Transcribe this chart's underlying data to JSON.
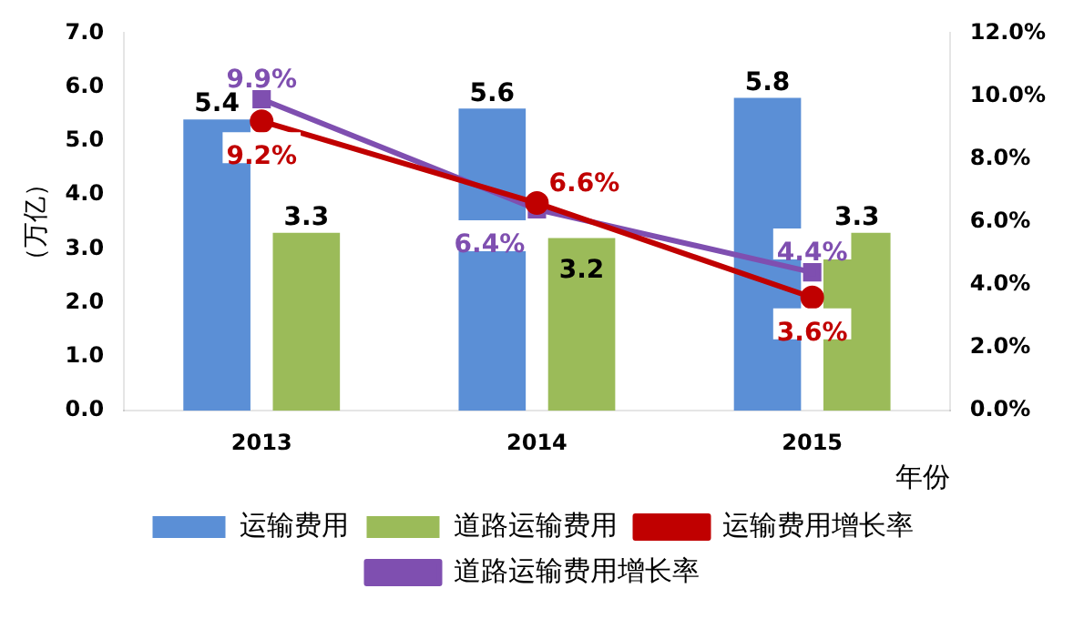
{
  "chart_data": {
    "type": "bar",
    "categories": [
      "2013",
      "2014",
      "2015"
    ],
    "xlabel": "年份",
    "ylabel": "（万亿）",
    "ylim": [
      0,
      7
    ],
    "yticks": [
      {
        "value": 0,
        "label": "0.0"
      },
      {
        "value": 1,
        "label": "1.0"
      },
      {
        "value": 2,
        "label": "2.0"
      },
      {
        "value": 3,
        "label": "3.0"
      },
      {
        "value": 4,
        "label": "4.0"
      },
      {
        "value": 5,
        "label": "5.0"
      },
      {
        "value": 6,
        "label": "6.0"
      },
      {
        "value": 7,
        "label": "7.0"
      }
    ],
    "y2lim": [
      0,
      12
    ],
    "y2ticks": [
      {
        "value": 0,
        "label": "0.0%"
      },
      {
        "value": 2,
        "label": "2.0%"
      },
      {
        "value": 4,
        "label": "4.0%"
      },
      {
        "value": 6,
        "label": "6.0%"
      },
      {
        "value": 8,
        "label": "8.0%"
      },
      {
        "value": 10,
        "label": "10.0%"
      },
      {
        "value": 12,
        "label": "12.0%"
      }
    ],
    "series": [
      {
        "name": "运输费用",
        "color": "#5b8fd6",
        "values": [
          5.4,
          5.6,
          5.8
        ],
        "value_labels": [
          "5.4",
          "5.6",
          "5.8"
        ]
      },
      {
        "name": "道路运输费用",
        "color": "#9bbb59",
        "values": [
          3.3,
          3.2,
          3.3
        ],
        "value_labels": [
          "3.3",
          "3.2",
          "3.3"
        ]
      },
      {
        "name": "运输费用增长率",
        "type": "line",
        "axis": "y2",
        "marker": "circle",
        "color": "#c00000",
        "values": [
          9.2,
          6.6,
          3.6
        ],
        "value_labels": [
          "9.2%",
          "6.6%",
          "3.6%"
        ]
      },
      {
        "name": "道路运输费用增长率",
        "type": "line",
        "axis": "y2",
        "marker": "square",
        "color": "#7f4fb0",
        "values": [
          9.9,
          6.4,
          4.4
        ],
        "value_labels": [
          "9.9%",
          "6.4%",
          "4.4%"
        ]
      }
    ],
    "grid": false,
    "legend": "bottom"
  }
}
